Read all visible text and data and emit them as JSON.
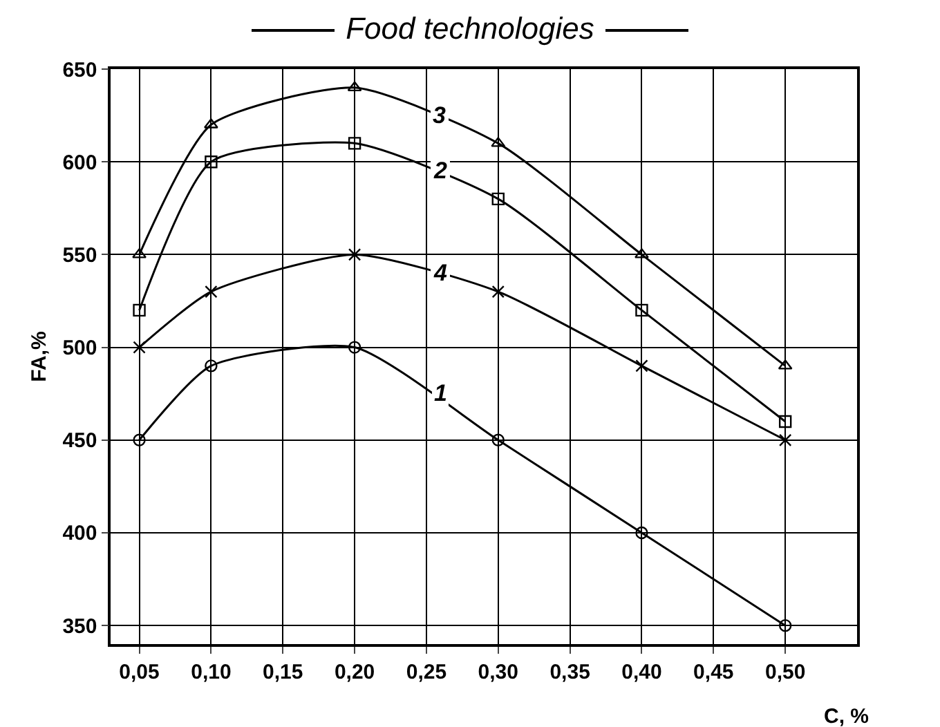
{
  "chart_data": {
    "type": "line",
    "title": "Food technologies",
    "xlabel": "C, %",
    "ylabel": "FA,%",
    "x": [
      0.05,
      0.1,
      0.2,
      0.3,
      0.4,
      0.5
    ],
    "series": [
      {
        "name": "1",
        "color": "#000000",
        "marker": "circle",
        "values": [
          450,
          490,
          500,
          450,
          400,
          350
        ]
      },
      {
        "name": "2",
        "color": "#000000",
        "marker": "square",
        "values": [
          520,
          600,
          610,
          580,
          520,
          460
        ]
      },
      {
        "name": "3",
        "color": "#000000",
        "marker": "triangle",
        "values": [
          550,
          620,
          640,
          610,
          550,
          490
        ]
      },
      {
        "name": "4",
        "color": "#000000",
        "marker": "cross",
        "values": [
          500,
          530,
          550,
          530,
          490,
          450
        ]
      }
    ],
    "xlim": [
      0.03,
      0.55
    ],
    "xticks": [
      {
        "value": 0.05,
        "label": "0,05"
      },
      {
        "value": 0.1,
        "label": "0,10"
      },
      {
        "value": 0.15,
        "label": "0,15"
      },
      {
        "value": 0.2,
        "label": "0,20"
      },
      {
        "value": 0.25,
        "label": "0,25"
      },
      {
        "value": 0.3,
        "label": "0,30"
      },
      {
        "value": 0.35,
        "label": "0,35"
      },
      {
        "value": 0.4,
        "label": "0,40"
      },
      {
        "value": 0.45,
        "label": "0,45"
      },
      {
        "value": 0.5,
        "label": "0,50"
      }
    ],
    "ylim": [
      340,
      650
    ],
    "yticks": [
      350,
      400,
      450,
      500,
      550,
      600,
      650
    ],
    "grid": true,
    "legend": false,
    "line_style": "solid"
  }
}
